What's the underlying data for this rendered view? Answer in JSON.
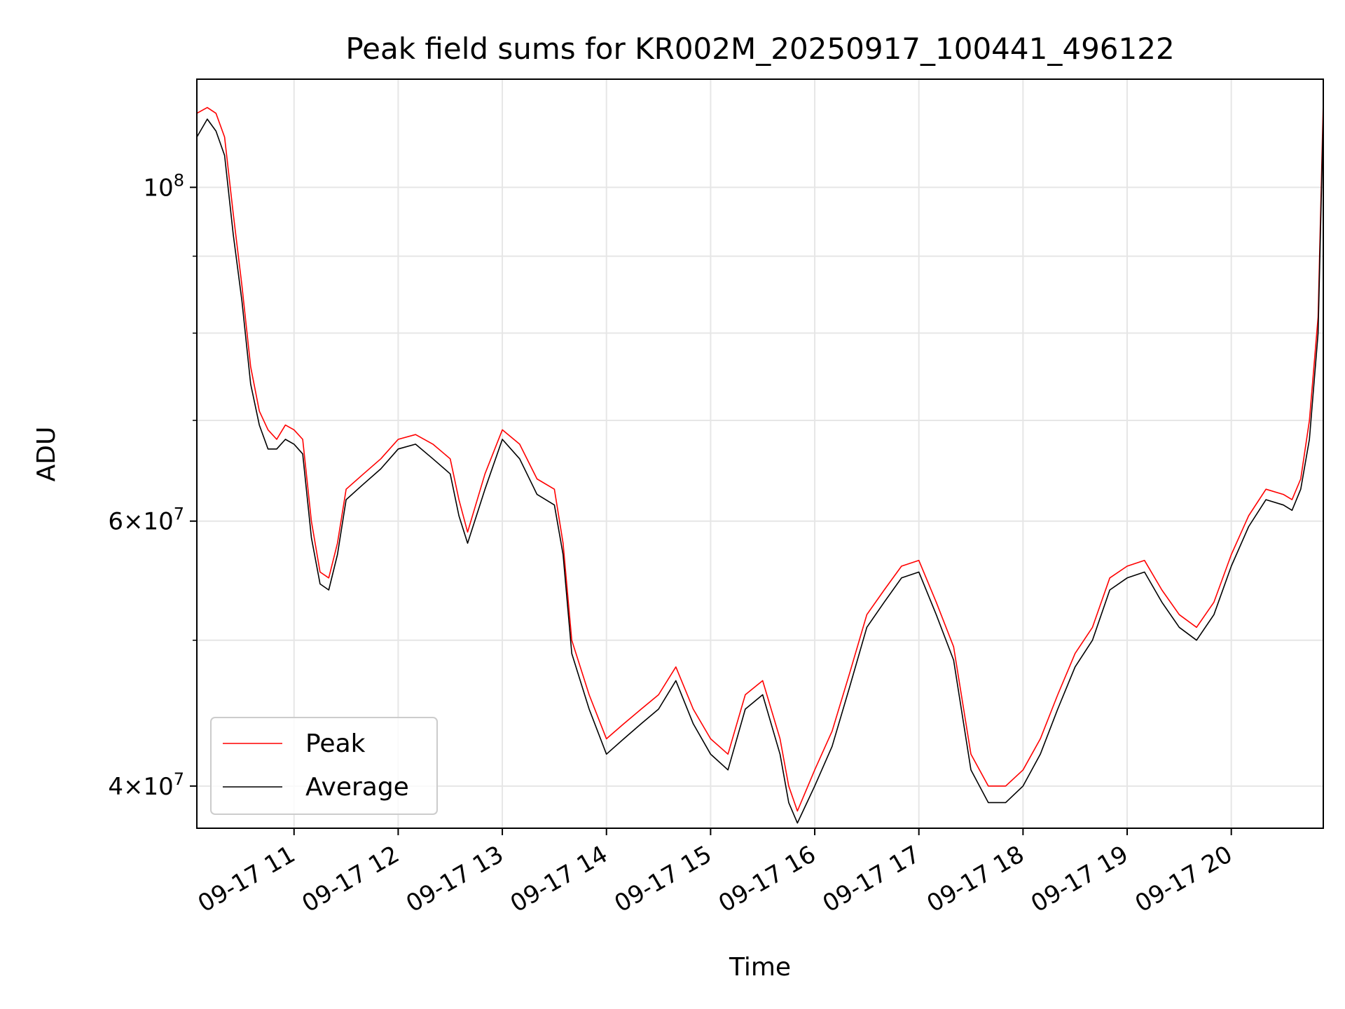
{
  "chart_data": {
    "type": "line",
    "title": "Peak field sums for KR002M_20250917_100441_496122",
    "xlabel": "Time",
    "ylabel": "ADU",
    "yscale": "log",
    "ylim": [
      37500000,
      118000000
    ],
    "xlim": [
      "2025-09-17 10:04",
      "2025-09-17 20:53"
    ],
    "grid": true,
    "legend_position": "lower-left",
    "x_ticks": [
      {
        "x": "2025-09-17 11:00",
        "label": "09-17 11"
      },
      {
        "x": "2025-09-17 12:00",
        "label": "09-17 12"
      },
      {
        "x": "2025-09-17 13:00",
        "label": "09-17 13"
      },
      {
        "x": "2025-09-17 14:00",
        "label": "09-17 14"
      },
      {
        "x": "2025-09-17 15:00",
        "label": "09-17 15"
      },
      {
        "x": "2025-09-17 16:00",
        "label": "09-17 16"
      },
      {
        "x": "2025-09-17 17:00",
        "label": "09-17 17"
      },
      {
        "x": "2025-09-17 18:00",
        "label": "09-17 18"
      },
      {
        "x": "2025-09-17 19:00",
        "label": "09-17 19"
      },
      {
        "x": "2025-09-17 20:00",
        "label": "09-17 20"
      }
    ],
    "y_major_ticks": [
      {
        "value": 40000000,
        "mantissa": "4",
        "exp": "7"
      },
      {
        "value": 60000000,
        "mantissa": "6",
        "exp": "7"
      },
      {
        "value": 100000000,
        "mantissa": "",
        "exp": "8"
      }
    ],
    "y_minor_gridlines": [
      50000000,
      70000000,
      80000000,
      90000000
    ],
    "series": [
      {
        "name": "Peak",
        "color": "#ff0000",
        "x": [
          "2025-09-17 10:04",
          "2025-09-17 10:10",
          "2025-09-17 10:15",
          "2025-09-17 10:20",
          "2025-09-17 10:25",
          "2025-09-17 10:30",
          "2025-09-17 10:35",
          "2025-09-17 10:40",
          "2025-09-17 10:45",
          "2025-09-17 10:50",
          "2025-09-17 10:55",
          "2025-09-17 11:00",
          "2025-09-17 11:05",
          "2025-09-17 11:10",
          "2025-09-17 11:15",
          "2025-09-17 11:20",
          "2025-09-17 11:25",
          "2025-09-17 11:30",
          "2025-09-17 11:40",
          "2025-09-17 11:50",
          "2025-09-17 12:00",
          "2025-09-17 12:10",
          "2025-09-17 12:20",
          "2025-09-17 12:30",
          "2025-09-17 12:35",
          "2025-09-17 12:40",
          "2025-09-17 12:50",
          "2025-09-17 13:00",
          "2025-09-17 13:10",
          "2025-09-17 13:20",
          "2025-09-17 13:30",
          "2025-09-17 13:35",
          "2025-09-17 13:40",
          "2025-09-17 13:50",
          "2025-09-17 14:00",
          "2025-09-17 14:10",
          "2025-09-17 14:20",
          "2025-09-17 14:30",
          "2025-09-17 14:40",
          "2025-09-17 14:50",
          "2025-09-17 15:00",
          "2025-09-17 15:10",
          "2025-09-17 15:20",
          "2025-09-17 15:30",
          "2025-09-17 15:40",
          "2025-09-17 15:45",
          "2025-09-17 15:50",
          "2025-09-17 16:00",
          "2025-09-17 16:10",
          "2025-09-17 16:20",
          "2025-09-17 16:30",
          "2025-09-17 16:40",
          "2025-09-17 16:50",
          "2025-09-17 17:00",
          "2025-09-17 17:10",
          "2025-09-17 17:20",
          "2025-09-17 17:30",
          "2025-09-17 17:40",
          "2025-09-17 17:50",
          "2025-09-17 18:00",
          "2025-09-17 18:10",
          "2025-09-17 18:20",
          "2025-09-17 18:30",
          "2025-09-17 18:40",
          "2025-09-17 18:50",
          "2025-09-17 19:00",
          "2025-09-17 19:10",
          "2025-09-17 19:20",
          "2025-09-17 19:30",
          "2025-09-17 19:40",
          "2025-09-17 19:50",
          "2025-09-17 20:00",
          "2025-09-17 20:10",
          "2025-09-17 20:20",
          "2025-09-17 20:30",
          "2025-09-17 20:35",
          "2025-09-17 20:40",
          "2025-09-17 20:45",
          "2025-09-17 20:50",
          "2025-09-17 20:53"
        ],
        "values": [
          112000000,
          113000000,
          112000000,
          108000000,
          96000000,
          86000000,
          76000000,
          71000000,
          69000000,
          68000000,
          69500000,
          69000000,
          68000000,
          60000000,
          55500000,
          55000000,
          58000000,
          63000000,
          64500000,
          66000000,
          68000000,
          68500000,
          67500000,
          66000000,
          62000000,
          59000000,
          64500000,
          69000000,
          67500000,
          64000000,
          63000000,
          58000000,
          50000000,
          46000000,
          43000000,
          44000000,
          45000000,
          46000000,
          48000000,
          45000000,
          43000000,
          42000000,
          46000000,
          47000000,
          43000000,
          40000000,
          38500000,
          41000000,
          43500000,
          47500000,
          52000000,
          54000000,
          56000000,
          56500000,
          53000000,
          49500000,
          42000000,
          40000000,
          40000000,
          41000000,
          43000000,
          46000000,
          49000000,
          51000000,
          55000000,
          56000000,
          56500000,
          54000000,
          52000000,
          51000000,
          53000000,
          57000000,
          60500000,
          63000000,
          62500000,
          62000000,
          64000000,
          70000000,
          82000000,
          114000000
        ]
      },
      {
        "name": "Average",
        "color": "#000000",
        "x": [
          "2025-09-17 10:04",
          "2025-09-17 10:10",
          "2025-09-17 10:15",
          "2025-09-17 10:20",
          "2025-09-17 10:25",
          "2025-09-17 10:30",
          "2025-09-17 10:35",
          "2025-09-17 10:40",
          "2025-09-17 10:45",
          "2025-09-17 10:50",
          "2025-09-17 10:55",
          "2025-09-17 11:00",
          "2025-09-17 11:05",
          "2025-09-17 11:10",
          "2025-09-17 11:15",
          "2025-09-17 11:20",
          "2025-09-17 11:25",
          "2025-09-17 11:30",
          "2025-09-17 11:40",
          "2025-09-17 11:50",
          "2025-09-17 12:00",
          "2025-09-17 12:10",
          "2025-09-17 12:20",
          "2025-09-17 12:30",
          "2025-09-17 12:35",
          "2025-09-17 12:40",
          "2025-09-17 12:50",
          "2025-09-17 13:00",
          "2025-09-17 13:10",
          "2025-09-17 13:20",
          "2025-09-17 13:30",
          "2025-09-17 13:35",
          "2025-09-17 13:40",
          "2025-09-17 13:50",
          "2025-09-17 14:00",
          "2025-09-17 14:10",
          "2025-09-17 14:20",
          "2025-09-17 14:30",
          "2025-09-17 14:40",
          "2025-09-17 14:50",
          "2025-09-17 15:00",
          "2025-09-17 15:10",
          "2025-09-17 15:20",
          "2025-09-17 15:30",
          "2025-09-17 15:40",
          "2025-09-17 15:45",
          "2025-09-17 15:50",
          "2025-09-17 16:00",
          "2025-09-17 16:10",
          "2025-09-17 16:20",
          "2025-09-17 16:30",
          "2025-09-17 16:40",
          "2025-09-17 16:50",
          "2025-09-17 17:00",
          "2025-09-17 17:10",
          "2025-09-17 17:20",
          "2025-09-17 17:30",
          "2025-09-17 17:40",
          "2025-09-17 17:50",
          "2025-09-17 18:00",
          "2025-09-17 18:10",
          "2025-09-17 18:20",
          "2025-09-17 18:30",
          "2025-09-17 18:40",
          "2025-09-17 18:50",
          "2025-09-17 19:00",
          "2025-09-17 19:10",
          "2025-09-17 19:20",
          "2025-09-17 19:30",
          "2025-09-17 19:40",
          "2025-09-17 19:50",
          "2025-09-17 20:00",
          "2025-09-17 20:10",
          "2025-09-17 20:20",
          "2025-09-17 20:30",
          "2025-09-17 20:35",
          "2025-09-17 20:40",
          "2025-09-17 20:45",
          "2025-09-17 20:50",
          "2025-09-17 20:53"
        ],
        "values": [
          108000000,
          111000000,
          109000000,
          105000000,
          93000000,
          84000000,
          74000000,
          69500000,
          67000000,
          67000000,
          68000000,
          67500000,
          66500000,
          58500000,
          54500000,
          54000000,
          57000000,
          62000000,
          63500000,
          65000000,
          67000000,
          67500000,
          66000000,
          64500000,
          60500000,
          58000000,
          63000000,
          68000000,
          66000000,
          62500000,
          61500000,
          57000000,
          49000000,
          45000000,
          42000000,
          43000000,
          44000000,
          45000000,
          47000000,
          44000000,
          42000000,
          41000000,
          45000000,
          46000000,
          42000000,
          39000000,
          37800000,
          40000000,
          42500000,
          46500000,
          51000000,
          53000000,
          55000000,
          55500000,
          52000000,
          48500000,
          41000000,
          39000000,
          39000000,
          40000000,
          42000000,
          45000000,
          48000000,
          50000000,
          54000000,
          55000000,
          55500000,
          53000000,
          51000000,
          50000000,
          52000000,
          56000000,
          59500000,
          62000000,
          61500000,
          61000000,
          63000000,
          68000000,
          80000000,
          112000000
        ]
      }
    ]
  }
}
